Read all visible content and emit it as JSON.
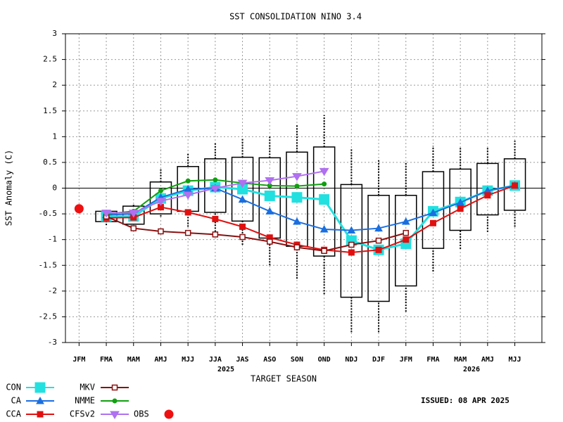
{
  "chart_data": {
    "type": "line",
    "title": "SST CONSOLIDATION NINO 3.4",
    "x_label": "TARGET SEASON",
    "y_label": "SST Anomaly (C)",
    "annotations": [
      "2025",
      "2026"
    ],
    "issued": "ISSUED: 08 APR 2025",
    "categories": [
      "JFM",
      "FMA",
      "MAM",
      "AMJ",
      "MJJ",
      "JJA",
      "JAS",
      "ASO",
      "SON",
      "OND",
      "NDJ",
      "DJF",
      "JFM",
      "FMA",
      "MAM",
      "AMJ",
      "MJJ"
    ],
    "ylim": [
      -3,
      3
    ],
    "yticks": [
      3,
      2.5,
      2,
      1.5,
      1,
      0.5,
      0,
      -0.5,
      -1,
      -1.5,
      -2,
      -2.5,
      -3
    ],
    "grid": true,
    "boxes": {
      "low": [
        null,
        -0.72,
        -0.75,
        -0.55,
        -0.75,
        -0.9,
        -1.1,
        -1.5,
        -1.76,
        -2.06,
        -2.8,
        -2.8,
        -2.4,
        -1.62,
        -1.18,
        -0.85,
        -0.75
      ],
      "q1": [
        null,
        -0.65,
        -0.7,
        -0.5,
        -0.45,
        -0.47,
        -0.64,
        -0.97,
        -1.13,
        -1.32,
        -2.12,
        -2.2,
        -1.9,
        -1.17,
        -0.82,
        -0.52,
        -0.43
      ],
      "q3": [
        null,
        -0.45,
        -0.35,
        0.12,
        0.42,
        0.57,
        0.6,
        0.59,
        0.7,
        0.8,
        0.07,
        -0.14,
        -0.14,
        0.32,
        0.37,
        0.48,
        0.57
      ],
      "high": [
        null,
        -0.42,
        -0.3,
        0.38,
        0.68,
        0.88,
        0.97,
        1.0,
        1.23,
        1.42,
        0.78,
        0.55,
        0.5,
        0.82,
        0.8,
        0.8,
        0.92
      ]
    },
    "series": [
      {
        "name": "CON",
        "color": "#22e0e0",
        "marker": "bigsquare",
        "values": [
          null,
          -0.55,
          -0.55,
          -0.2,
          -0.05,
          0.02,
          -0.02,
          -0.15,
          -0.18,
          -0.22,
          -1.02,
          -1.2,
          -1.08,
          -0.45,
          -0.27,
          -0.05,
          0.05
        ]
      },
      {
        "name": "CA",
        "color": "#1a6fe0",
        "marker": "triangle",
        "values": [
          null,
          -0.52,
          -0.5,
          -0.18,
          -0.02,
          0.0,
          -0.22,
          -0.45,
          -0.65,
          -0.8,
          -0.82,
          -0.78,
          -0.65,
          -0.48,
          -0.28,
          -0.05,
          0.05
        ]
      },
      {
        "name": "CCA",
        "color": "#e01010",
        "marker": "square",
        "values": [
          null,
          -0.58,
          -0.57,
          -0.37,
          -0.47,
          -0.6,
          -0.75,
          -0.96,
          -1.1,
          -1.2,
          -1.25,
          -1.2,
          -1.0,
          -0.68,
          -0.4,
          -0.14,
          0.05
        ]
      },
      {
        "name": "MKV",
        "color": "#8b1010",
        "marker": "hollowsquare",
        "values": [
          null,
          -0.55,
          -0.78,
          -0.84,
          -0.87,
          -0.9,
          -0.95,
          -1.04,
          -1.15,
          -1.22,
          -1.1,
          -1.02,
          -0.87,
          null,
          null,
          null,
          null
        ]
      },
      {
        "name": "NMME",
        "color": "#10a010",
        "marker": "dot",
        "values": [
          null,
          -0.5,
          -0.45,
          -0.05,
          0.14,
          0.16,
          0.1,
          0.05,
          0.04,
          0.08,
          null,
          null,
          null,
          null,
          null,
          null,
          null
        ]
      },
      {
        "name": "CFSv2",
        "color": "#b070f0",
        "marker": "downtriangle",
        "values": [
          null,
          -0.48,
          -0.48,
          -0.25,
          -0.13,
          0.0,
          0.1,
          0.15,
          0.23,
          0.33,
          null,
          null,
          null,
          null,
          null,
          null,
          null
        ]
      },
      {
        "name": "OBS",
        "color": "#ee1010",
        "marker": "bigdot",
        "values": [
          -0.4,
          null,
          null,
          null,
          null,
          null,
          null,
          null,
          null,
          null,
          null,
          null,
          null,
          null,
          null,
          null,
          null
        ]
      }
    ]
  }
}
